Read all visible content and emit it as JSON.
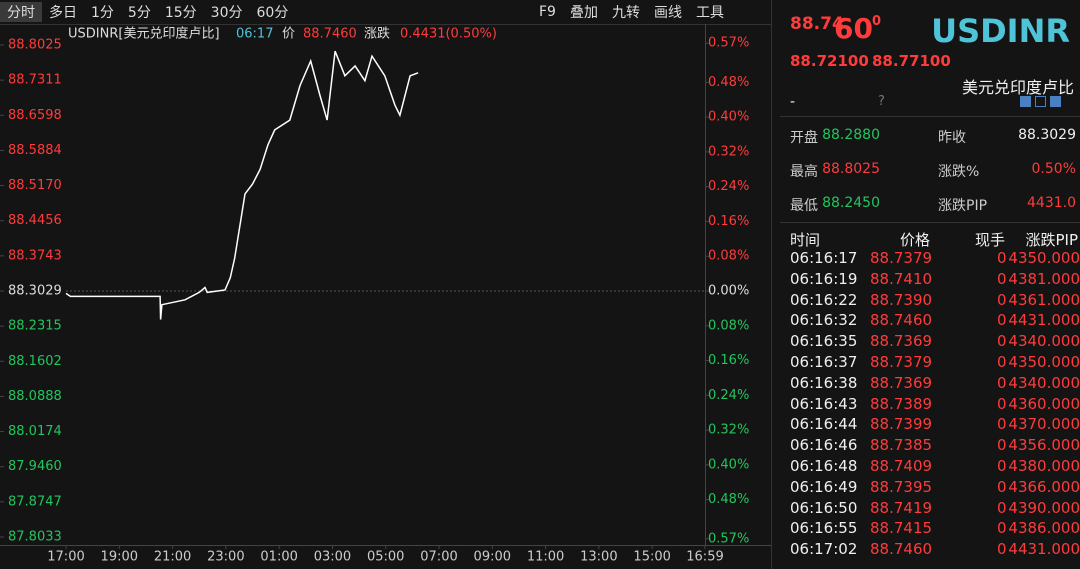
{
  "toolbar": {
    "periods": [
      "分时",
      "多日",
      "1分",
      "5分",
      "15分",
      "30分",
      "60分"
    ],
    "tools": [
      "F9",
      "叠加",
      "九转",
      "画线",
      "工具"
    ]
  },
  "chart_header": {
    "symbol": "USDINR[美元兑印度卢比]",
    "time": "06:17",
    "price_label": "价",
    "price": "88.7460",
    "change_label": "涨跌",
    "change": "0.4431(0.50%)"
  },
  "chart": {
    "xticks": [
      {
        "value": 0,
        "label": "17:00"
      },
      {
        "value": 120,
        "label": "19:00"
      },
      {
        "value": 240,
        "label": "21:00"
      },
      {
        "value": 360,
        "label": "23:00"
      },
      {
        "value": 480,
        "label": "01:00"
      },
      {
        "value": 600,
        "label": "03:00"
      },
      {
        "value": 720,
        "label": "05:00"
      },
      {
        "value": 840,
        "label": "07:00"
      },
      {
        "value": 960,
        "label": "09:00"
      },
      {
        "value": 1080,
        "label": "11:00"
      },
      {
        "value": 1200,
        "label": "13:00"
      },
      {
        "value": 1320,
        "label": "15:00"
      },
      {
        "value": 1439,
        "label": "16:59"
      }
    ],
    "xlim": [
      0,
      1439
    ],
    "ylim": [
      87.8033,
      88.8025
    ],
    "yticks": [
      {
        "value": 88.8025,
        "label": "88.8025"
      },
      {
        "value": 88.7311,
        "label": "88.7311"
      },
      {
        "value": 88.6598,
        "label": "88.6598"
      },
      {
        "value": 88.5884,
        "label": "88.5884"
      },
      {
        "value": 88.517,
        "label": "88.5170"
      },
      {
        "value": 88.4456,
        "label": "88.4456"
      },
      {
        "value": 88.3743,
        "label": "88.3743"
      },
      {
        "value": 88.3029,
        "label": "88.3029"
      },
      {
        "value": 88.2315,
        "label": "88.2315"
      },
      {
        "value": 88.1602,
        "label": "88.1602"
      },
      {
        "value": 88.0888,
        "label": "88.0888"
      },
      {
        "value": 88.0174,
        "label": "88.0174"
      },
      {
        "value": 87.946,
        "label": "87.9460"
      },
      {
        "value": 87.8747,
        "label": "87.8747"
      },
      {
        "value": 87.8033,
        "label": "87.8033"
      }
    ],
    "y2ticks": [
      {
        "value": 0.57,
        "label": "0.57%"
      },
      {
        "value": 0.48,
        "label": "0.48%"
      },
      {
        "value": 0.4,
        "label": "0.40%"
      },
      {
        "value": 0.32,
        "label": "0.32%"
      },
      {
        "value": 0.24,
        "label": "0.24%"
      },
      {
        "value": 0.16,
        "label": "0.16%"
      },
      {
        "value": 0.08,
        "label": "0.08%"
      },
      {
        "value": 0,
        "label": "0.00%"
      },
      {
        "value": -0.08,
        "label": "0.08%"
      },
      {
        "value": -0.16,
        "label": "0.16%"
      },
      {
        "value": -0.24,
        "label": "0.24%"
      },
      {
        "value": -0.32,
        "label": "0.32%"
      },
      {
        "value": -0.4,
        "label": "0.40%"
      },
      {
        "value": -0.48,
        "label": "0.48%"
      },
      {
        "value": -0.57,
        "label": "0.57%"
      }
    ],
    "y2lim": [
      -0.5659,
      0.5659
    ],
    "x": [
      0,
      10,
      60,
      212,
      213,
      216,
      268,
      300,
      313,
      318,
      358,
      370,
      380,
      403,
      420,
      437,
      455,
      470,
      504,
      527,
      551,
      572,
      588,
      606,
      628,
      651,
      673,
      689,
      718,
      741,
      752,
      775,
      793
    ],
    "values": [
      88.298,
      88.292,
      88.292,
      88.292,
      88.245,
      88.275,
      88.285,
      88.3,
      88.31,
      88.3,
      88.305,
      88.33,
      88.37,
      88.5,
      88.52,
      88.55,
      88.6,
      88.63,
      88.65,
      88.72,
      88.77,
      88.7,
      88.65,
      88.79,
      88.74,
      88.76,
      88.73,
      88.78,
      88.74,
      88.68,
      88.66,
      88.74,
      88.746
    ]
  },
  "quote": {
    "price_main": "88.74",
    "price_big": "60",
    "price_sup": "0",
    "symbol": "USDINR",
    "bid": "88.72100",
    "ask": "88.77100",
    "name": "美元兑印度卢比",
    "dash": "-",
    "help": "?",
    "stats": [
      [
        "开盘",
        "88.2880",
        "昨收",
        "88.3029"
      ],
      [
        "最高",
        "88.8025",
        "涨跌%",
        "0.50%"
      ],
      [
        "最低",
        "88.2450",
        "涨跌PIP",
        "4431.0"
      ]
    ]
  },
  "trades": {
    "headers": [
      "时间",
      "价格",
      "现手",
      "涨跌PIP"
    ],
    "rows": [
      [
        "06:16:17",
        "88.7379",
        "0",
        "4350.000"
      ],
      [
        "06:16:19",
        "88.7410",
        "0",
        "4381.000"
      ],
      [
        "06:16:22",
        "88.7390",
        "0",
        "4361.000"
      ],
      [
        "06:16:32",
        "88.7460",
        "0",
        "4431.000"
      ],
      [
        "06:16:35",
        "88.7369",
        "0",
        "4340.000"
      ],
      [
        "06:16:37",
        "88.7379",
        "0",
        "4350.000"
      ],
      [
        "06:16:38",
        "88.7369",
        "0",
        "4340.000"
      ],
      [
        "06:16:43",
        "88.7389",
        "0",
        "4360.000"
      ],
      [
        "06:16:44",
        "88.7399",
        "0",
        "4370.000"
      ],
      [
        "06:16:46",
        "88.7385",
        "0",
        "4356.000"
      ],
      [
        "06:16:48",
        "88.7409",
        "0",
        "4380.000"
      ],
      [
        "06:16:49",
        "88.7395",
        "0",
        "4366.000"
      ],
      [
        "06:16:50",
        "88.7419",
        "0",
        "4390.000"
      ],
      [
        "06:16:55",
        "88.7415",
        "0",
        "4386.000"
      ],
      [
        "06:17:02",
        "88.7460",
        "0",
        "4431.000"
      ]
    ]
  }
}
